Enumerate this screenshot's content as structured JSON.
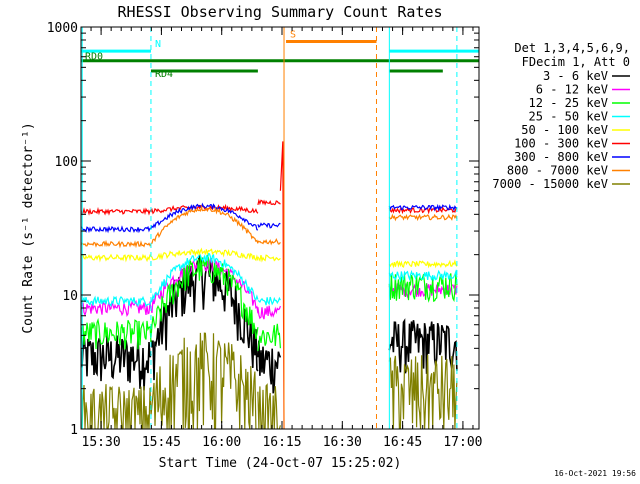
{
  "chart_data": {
    "type": "line",
    "title": "RHESSI Observing Summary Count Rates",
    "xlabel": "Start Time (24-Oct-07 15:25:02)",
    "ylabel": "Count Rate (s⁻¹ detector⁻¹)",
    "y_scale": "log",
    "x_range_min": [
      0,
      99
    ],
    "y_range": [
      1,
      1000
    ],
    "x_ticks": [
      {
        "min": 5,
        "label": "15:30"
      },
      {
        "min": 20,
        "label": "15:45"
      },
      {
        "min": 35,
        "label": "16:00"
      },
      {
        "min": 50,
        "label": "16:15"
      },
      {
        "min": 65,
        "label": "16:30"
      },
      {
        "min": 80,
        "label": "16:45"
      },
      {
        "min": 95,
        "label": "17:00"
      }
    ],
    "y_ticks": [
      {
        "value": 1,
        "label": "1"
      },
      {
        "value": 10,
        "label": "10"
      },
      {
        "value": 100,
        "label": "100"
      },
      {
        "value": 1000,
        "label": "1000"
      }
    ],
    "legend": {
      "placement": "right",
      "header": [
        "Det 1,3,4,5,6,9,",
        "FDecim 1, Att 0"
      ]
    },
    "timestamp": "16-Oct-2021 19:56",
    "series": [
      {
        "name": "3 - 6 keV",
        "color": "#000000",
        "base": 3.5,
        "peak": 14,
        "noise": 0.45,
        "segments": [
          [
            0,
            17.4,
            3.5
          ],
          [
            17.4,
            44,
            null
          ],
          [
            44,
            49.6,
            3.2
          ],
          [
            76.7,
            93.5,
            4.5
          ]
        ]
      },
      {
        "name": "6 - 12 keV",
        "color": "#ff00ff",
        "base": 8.0,
        "peak": 17,
        "noise": 0.12,
        "segments": [
          [
            0,
            17.4,
            8
          ],
          [
            17.4,
            44,
            null
          ],
          [
            44,
            49.6,
            7.5
          ],
          [
            76.7,
            93.5,
            11
          ]
        ]
      },
      {
        "name": "12 - 25 keV",
        "color": "#00ff00",
        "base": 5.2,
        "peak": 16,
        "noise": 0.25,
        "segments": [
          [
            0,
            17.4,
            5.2
          ],
          [
            17.4,
            44,
            null
          ],
          [
            44,
            49.6,
            5
          ],
          [
            76.7,
            93.5,
            12
          ]
        ]
      },
      {
        "name": "25 - 50 keV",
        "color": "#00ffff",
        "base": 9.0,
        "peak": 19,
        "noise": 0.08,
        "segments": [
          [
            0,
            17.4,
            9
          ],
          [
            17.4,
            44,
            null
          ],
          [
            44,
            49.6,
            9
          ],
          [
            76.7,
            93.5,
            14
          ]
        ]
      },
      {
        "name": "50 - 100 keV",
        "color": "#ffff00",
        "base": 19,
        "peak": 21,
        "noise": 0.05,
        "segments": [
          [
            0,
            17.4,
            19
          ],
          [
            17.4,
            44,
            null
          ],
          [
            44,
            49.6,
            19
          ],
          [
            76.7,
            93.5,
            17
          ]
        ]
      },
      {
        "name": "100 - 300 keV",
        "color": "#ff0000",
        "base": 42,
        "peak": 45,
        "noise": 0.04,
        "segments": [
          [
            0,
            17.4,
            42
          ],
          [
            17.4,
            44,
            null
          ],
          [
            44,
            49.6,
            49
          ],
          [
            76.7,
            93.5,
            43
          ]
        ]
      },
      {
        "name": "300 - 800 keV",
        "color": "#0000ff",
        "base": 31,
        "peak": 46,
        "noise": 0.04,
        "segments": [
          [
            0,
            17.4,
            31
          ],
          [
            17.4,
            44,
            null
          ],
          [
            44,
            49.6,
            33
          ],
          [
            76.7,
            93.5,
            45
          ]
        ]
      },
      {
        "name": "800 - 7000 keV",
        "color": "#ff8000",
        "base": 24,
        "peak": 44,
        "noise": 0.04,
        "segments": [
          [
            0,
            17.4,
            24
          ],
          [
            17.4,
            44,
            null
          ],
          [
            44,
            49.6,
            25
          ],
          [
            76.7,
            93.5,
            38
          ]
        ]
      },
      {
        "name": "7000 - 15000 keV",
        "color": "#808000",
        "base": 1.4,
        "peak": 3.0,
        "noise": 0.8,
        "segments": [
          [
            0,
            17.4,
            1.2
          ],
          [
            17.4,
            44,
            null
          ],
          [
            44,
            49.6,
            1.2
          ],
          [
            76.7,
            93.5,
            2
          ]
        ]
      }
    ],
    "markers": [
      {
        "min": 0.3,
        "color": "#00ffff",
        "style": "solid"
      },
      {
        "min": 17.4,
        "color": "#00ffff",
        "style": "dashed"
      },
      {
        "min": 50.5,
        "color": "#ff8000",
        "style": "solid"
      },
      {
        "min": 73.5,
        "color": "#ff8000",
        "style": "dashed"
      },
      {
        "min": 76.7,
        "color": "#00ffff",
        "style": "solid"
      },
      {
        "min": 93.5,
        "color": "#00ffff",
        "style": "dashed"
      }
    ],
    "bars": [
      {
        "label": "",
        "color": "#00ffff",
        "from": 0,
        "to": 17.4,
        "level": 660
      },
      {
        "label": "N",
        "color": "#00ffff",
        "from": 17.4,
        "to": 17.4,
        "level": 660
      },
      {
        "label": "",
        "color": "#00ffff",
        "from": 76.7,
        "to": 99,
        "level": 660
      },
      {
        "label": "S",
        "color": "#ff8000",
        "from": 51,
        "to": 73.5,
        "level": 780
      },
      {
        "label": "RD0",
        "color": "#008000",
        "from": 0,
        "to": 76.7,
        "level": 560
      },
      {
        "label": "",
        "color": "#008000",
        "from": 76.7,
        "to": 99,
        "level": 560
      },
      {
        "label": "RD4",
        "color": "#008000",
        "from": 17.4,
        "to": 44,
        "level": 470
      },
      {
        "label": "",
        "color": "#008000",
        "from": 76.7,
        "to": 90,
        "level": 470
      }
    ]
  }
}
